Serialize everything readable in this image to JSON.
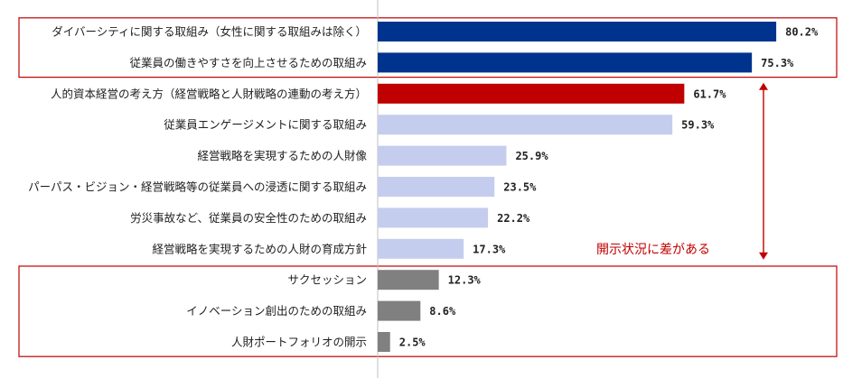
{
  "chart_data": {
    "type": "bar",
    "orientation": "horizontal",
    "categories": [
      "ダイバーシティに関する取組み（女性に関する取組みは除く）",
      "従業員の働きやすさを向上させるための取組み",
      "人的資本経営の考え方（経営戦略と人財戦略の連動の考え方）",
      "従業員エンゲージメントに関する取組み",
      "経営戦略を実現するための人財像",
      "パーパス・ビジョン・経営戦略等の従業員への浸透に関する取組み",
      "労災事故など、従業員の安全性のための取組み",
      "経営戦略を実現するための人財の育成方針",
      "サクセッション",
      "イノベーション創出のための取組み",
      "人財ポートフォリオの開示"
    ],
    "values": [
      80.2,
      75.3,
      61.7,
      59.3,
      25.9,
      23.5,
      22.2,
      17.3,
      12.3,
      8.6,
      2.5
    ],
    "value_labels": [
      "80.2%",
      "75.3%",
      "61.7%",
      "59.3%",
      "25.9%",
      "23.5%",
      "22.2%",
      "17.3%",
      "12.3%",
      "8.6%",
      "2.5%"
    ],
    "bar_colors": [
      "#00338d",
      "#00338d",
      "#c00000",
      "#c5cdee",
      "#c5cdee",
      "#c5cdee",
      "#c5cdee",
      "#c5cdee",
      "#808080",
      "#808080",
      "#808080"
    ],
    "xlim": [
      0,
      100
    ],
    "annotation": "開示状況に差がある",
    "annotation_color": "#c00000",
    "group_box_color": "#c00000",
    "highlight_groups": [
      {
        "from_index": 0,
        "to_index": 1
      },
      {
        "from_index": 8,
        "to_index": 10
      }
    ],
    "arrow_span": {
      "from_index": 2,
      "to_index": 7
    }
  }
}
